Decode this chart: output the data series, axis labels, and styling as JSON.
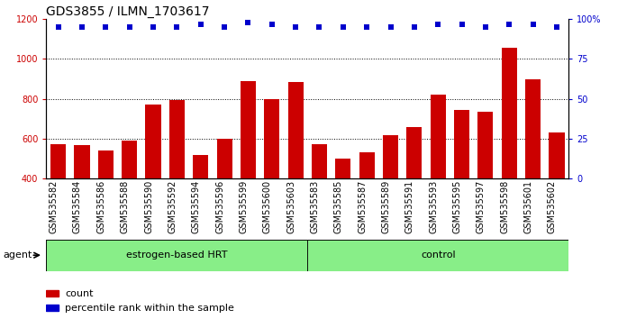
{
  "title": "GDS3855 / ILMN_1703617",
  "categories": [
    "GSM535582",
    "GSM535584",
    "GSM535586",
    "GSM535588",
    "GSM535590",
    "GSM535592",
    "GSM535594",
    "GSM535596",
    "GSM535599",
    "GSM535600",
    "GSM535603",
    "GSM535583",
    "GSM535585",
    "GSM535587",
    "GSM535589",
    "GSM535591",
    "GSM535593",
    "GSM535595",
    "GSM535597",
    "GSM535598",
    "GSM535601",
    "GSM535602"
  ],
  "bar_values": [
    575,
    570,
    540,
    590,
    770,
    795,
    520,
    600,
    890,
    800,
    885,
    575,
    500,
    530,
    620,
    660,
    820,
    745,
    735,
    1055,
    900,
    630
  ],
  "percentile_values": [
    95,
    95,
    95,
    95,
    95,
    95,
    97,
    95,
    98,
    97,
    95,
    95,
    95,
    95,
    95,
    95,
    97,
    97,
    95,
    97,
    97,
    95
  ],
  "group1_label": "estrogen-based HRT",
  "group2_label": "control",
  "group1_count": 11,
  "group2_count": 11,
  "ylim_left": [
    400,
    1200
  ],
  "ylim_right": [
    0,
    100
  ],
  "yticks_left": [
    400,
    600,
    800,
    1000,
    1200
  ],
  "yticks_right": [
    0,
    25,
    50,
    75,
    100
  ],
  "bar_color": "#cc0000",
  "dot_color": "#0000cc",
  "group_color": "#88ee88",
  "legend_count_label": "count",
  "legend_pct_label": "percentile rank within the sample",
  "agent_label": "agent",
  "title_fontsize": 10,
  "tick_fontsize": 7,
  "group_fontsize": 8,
  "legend_fontsize": 8
}
